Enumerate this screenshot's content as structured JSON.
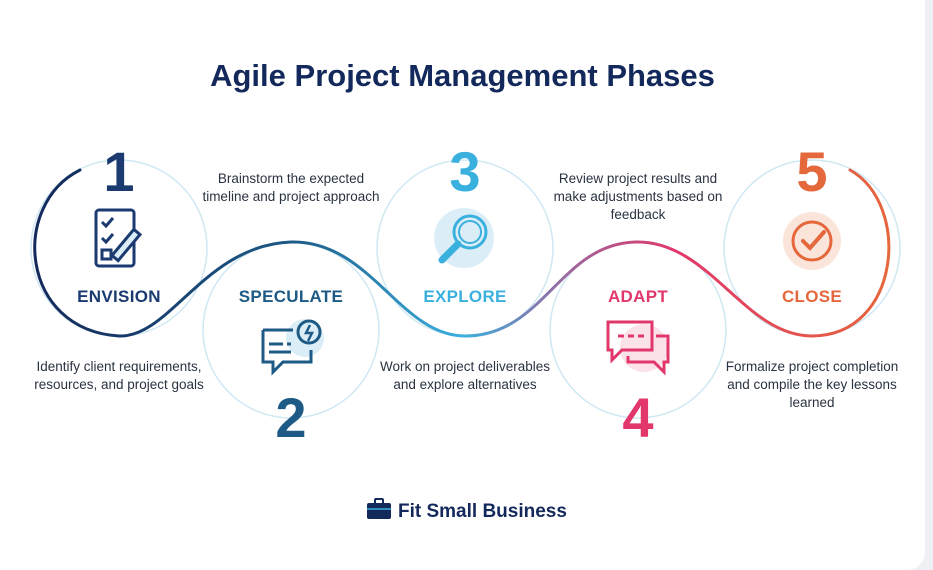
{
  "title": "Agile Project Management Phases",
  "phases": [
    {
      "number": "1",
      "label": "ENVISION",
      "description": "Identify client requirements, resources, and project goals",
      "color": "#1a3a70",
      "icon": "checklist-icon"
    },
    {
      "number": "2",
      "label": "SPECULATE",
      "description": "Brainstorm the expected timeline and project approach",
      "color": "#1d5a86",
      "icon": "idea-chat-icon"
    },
    {
      "number": "3",
      "label": "EXPLORE",
      "description": "Work on project deliverables and explore alternatives",
      "color": "#3ab0de",
      "icon": "magnifier-icon"
    },
    {
      "number": "4",
      "label": "ADAPT",
      "description": "Review project results and make adjustments based on feedback",
      "color": "#e2376a",
      "icon": "chat-bubbles-icon"
    },
    {
      "number": "5",
      "label": "CLOSE",
      "description": "Formalize project completion and compile the key lessons learned",
      "color": "#e5673c",
      "icon": "check-circle-icon"
    }
  ],
  "brand": {
    "name": "Fit Small Business",
    "icon": "briefcase-icon",
    "color": "#14295b"
  }
}
